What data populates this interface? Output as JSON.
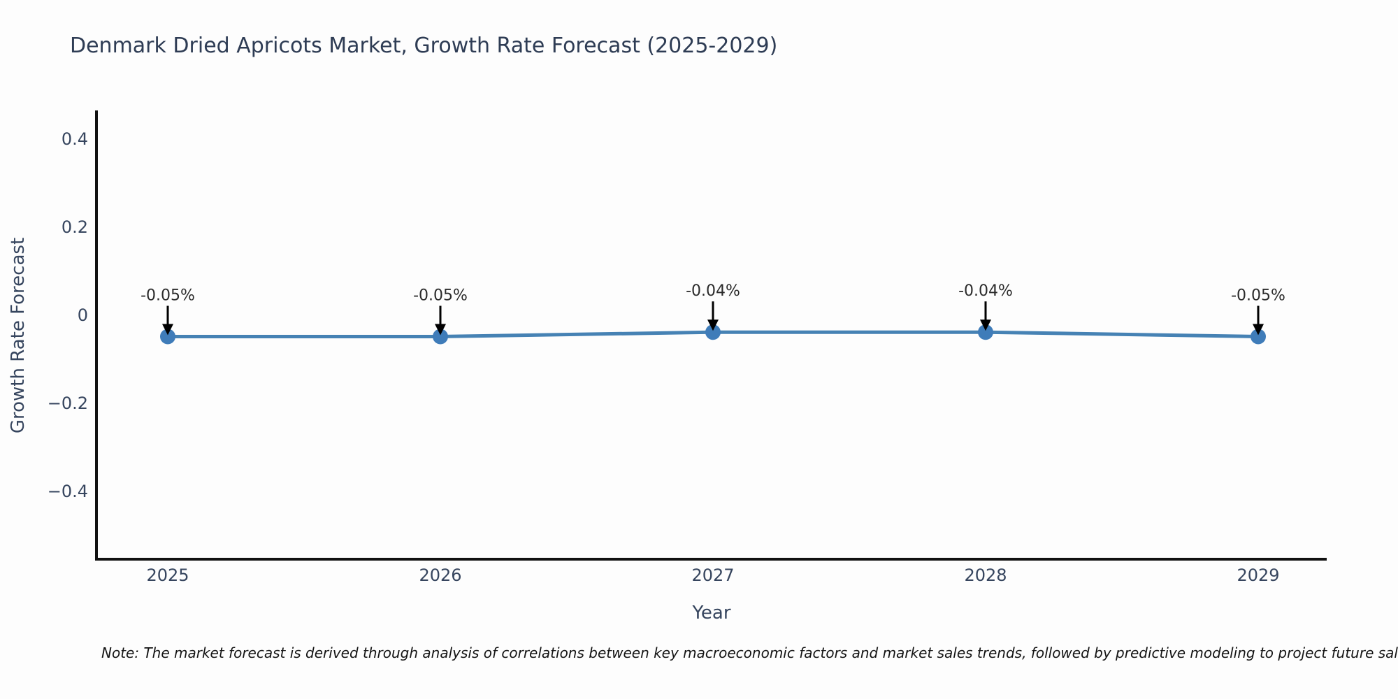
{
  "page": {
    "background": "#fdfdfd"
  },
  "chart_data": {
    "type": "line",
    "title": "Denmark Dried Apricots Market, Growth Rate Forecast (2025-2029)",
    "xlabel": "Year",
    "ylabel": "Growth Rate Forecast",
    "categories": [
      "2025",
      "2026",
      "2027",
      "2028",
      "2029"
    ],
    "series": [
      {
        "name": "Growth Rate Forecast",
        "values": [
          -0.05,
          -0.05,
          -0.04,
          -0.04,
          -0.05
        ]
      }
    ],
    "point_labels": [
      "-0.05%",
      "-0.05%",
      "-0.04%",
      "-0.04%",
      "-0.05%"
    ],
    "ylim": [
      -0.52,
      0.46
    ],
    "yticks": {
      "values": [
        0.4,
        0.2,
        0,
        -0.2,
        -0.4
      ],
      "labels": [
        "0.4",
        "0.2",
        "0",
        "−0.2",
        "−0.4"
      ]
    },
    "grid": false,
    "legend": "none",
    "line_color": "#4682b4",
    "marker_color": "#3f7cb9",
    "axis_color": "#111111",
    "annotation_arrow_color": "#000000"
  },
  "note": {
    "text": "Note: The market forecast is derived through analysis of correlations between key macroeconomic factors and market sales trends, followed by predictive modeling to project future sales."
  }
}
